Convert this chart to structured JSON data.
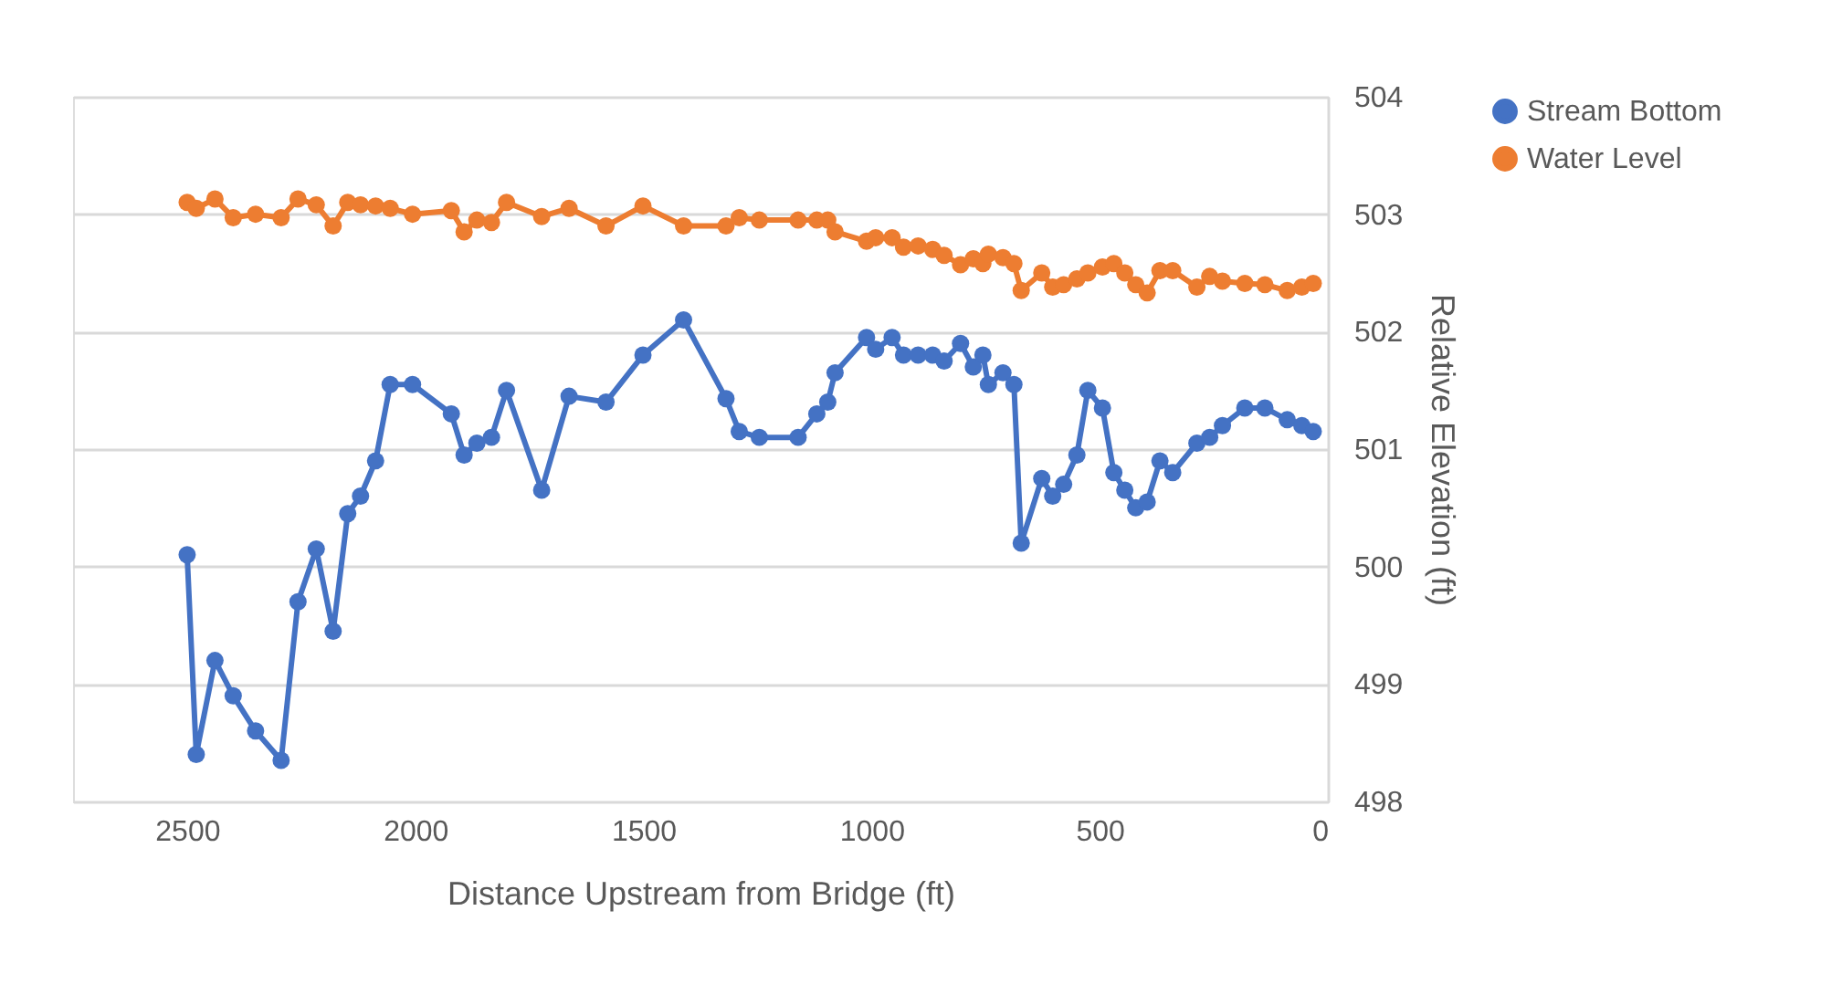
{
  "chart_data": {
    "type": "line",
    "xlabel": "Distance Upstream from Bridge (ft)",
    "ylabel": "Relative Elevation (ft)",
    "x": [
      2500,
      2480,
      2439,
      2399,
      2350,
      2294,
      2257,
      2217,
      2180,
      2148,
      2120,
      2087,
      2055,
      2006,
      1921,
      1893,
      1865,
      1833,
      1800,
      1723,
      1663,
      1582,
      1501,
      1412,
      1319,
      1290,
      1246,
      1161,
      1120,
      1096,
      1080,
      1011,
      991,
      955,
      930,
      898,
      866,
      841,
      805,
      777,
      756,
      744,
      712,
      688,
      672,
      627,
      603,
      579,
      550,
      526,
      494,
      469,
      445,
      421,
      396,
      368,
      340,
      287,
      259,
      231,
      182,
      138,
      89,
      57,
      32
    ],
    "series": [
      {
        "name": "Stream Bottom",
        "color": "#4472c4",
        "values": [
          500.1,
          498.4,
          499.2,
          498.9,
          498.6,
          498.35,
          499.7,
          500.15,
          499.45,
          500.45,
          500.6,
          500.9,
          501.55,
          501.55,
          501.3,
          500.95,
          501.05,
          501.1,
          501.5,
          500.65,
          501.45,
          501.4,
          501.8,
          502.1,
          501.43,
          501.15,
          501.1,
          501.1,
          501.3,
          501.4,
          501.65,
          501.95,
          501.85,
          501.95,
          501.8,
          501.8,
          501.8,
          501.75,
          501.9,
          501.7,
          501.8,
          501.55,
          501.65,
          501.55,
          500.2,
          500.75,
          500.6,
          500.7,
          500.95,
          501.5,
          501.35,
          500.8,
          500.65,
          500.5,
          500.55,
          500.9,
          500.8,
          501.05,
          501.1,
          501.2,
          501.35,
          501.35,
          501.25,
          501.2,
          501.15
        ]
      },
      {
        "name": "Water Level",
        "color": "#ed7d31",
        "values": [
          503.1,
          503.05,
          503.13,
          502.97,
          503.0,
          502.97,
          503.13,
          503.08,
          502.9,
          503.1,
          503.08,
          503.07,
          503.05,
          503.0,
          503.03,
          502.85,
          502.95,
          502.93,
          503.1,
          502.98,
          503.05,
          502.9,
          503.07,
          502.9,
          502.9,
          502.97,
          502.95,
          502.95,
          502.95,
          502.95,
          502.85,
          502.77,
          502.8,
          502.8,
          502.72,
          502.73,
          502.7,
          502.65,
          502.57,
          502.62,
          502.58,
          502.66,
          502.63,
          502.58,
          502.35,
          502.5,
          502.38,
          502.4,
          502.45,
          502.5,
          502.55,
          502.58,
          502.5,
          502.4,
          502.33,
          502.52,
          502.52,
          502.38,
          502.47,
          502.43,
          502.41,
          502.4,
          502.35,
          502.38,
          502.41
        ]
      }
    ],
    "xlim": [
      2750,
      0
    ],
    "xticks": [
      2500,
      2000,
      1500,
      1000,
      500,
      0
    ],
    "ylim": [
      498,
      504
    ],
    "yticks": [
      498,
      499,
      500,
      501,
      502,
      503,
      504
    ],
    "grid": "y",
    "legend": "right",
    "marker": "circle",
    "line_style": "solid"
  }
}
